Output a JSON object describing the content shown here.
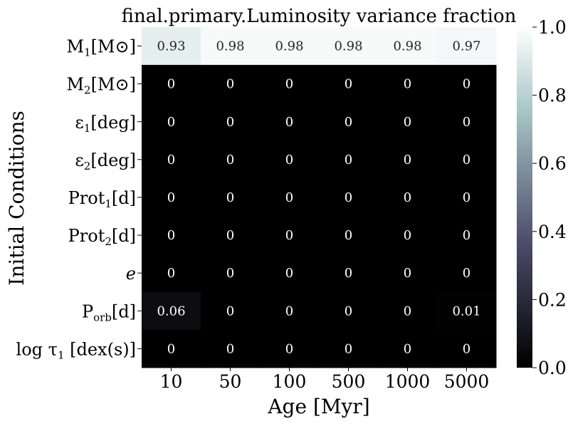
{
  "chart_data": {
    "type": "heatmap",
    "title": "final.primary.Luminosity variance fraction",
    "xlabel": "Age [Myr]",
    "ylabel": "Initial Conditions",
    "x_categories": [
      "10",
      "50",
      "100",
      "500",
      "1000",
      "5000"
    ],
    "y_categories": [
      "M1[M⊙]",
      "M2[M⊙]",
      "ε1[deg]",
      "ε2[deg]",
      "Prot1[d]",
      "Prot2[d]",
      "e",
      "Porb[d]",
      "log τ1 [dex(s)]"
    ],
    "values": [
      [
        0.93,
        0.98,
        0.98,
        0.98,
        0.98,
        0.97
      ],
      [
        0,
        0,
        0,
        0,
        0,
        0
      ],
      [
        0,
        0,
        0,
        0,
        0,
        0
      ],
      [
        0,
        0,
        0,
        0,
        0,
        0
      ],
      [
        0,
        0,
        0,
        0,
        0,
        0
      ],
      [
        0,
        0,
        0,
        0,
        0,
        0
      ],
      [
        0,
        0,
        0,
        0,
        0,
        0
      ],
      [
        0.06,
        0,
        0,
        0,
        0,
        0.01
      ],
      [
        0,
        0,
        0,
        0,
        0,
        0
      ]
    ],
    "colorbar": {
      "range": [
        0.0,
        1.0
      ],
      "ticks": [
        "0.0",
        "0.2",
        "0.4",
        "0.6",
        "0.8",
        "1.0"
      ],
      "colormap": "bone"
    },
    "grid": false
  }
}
